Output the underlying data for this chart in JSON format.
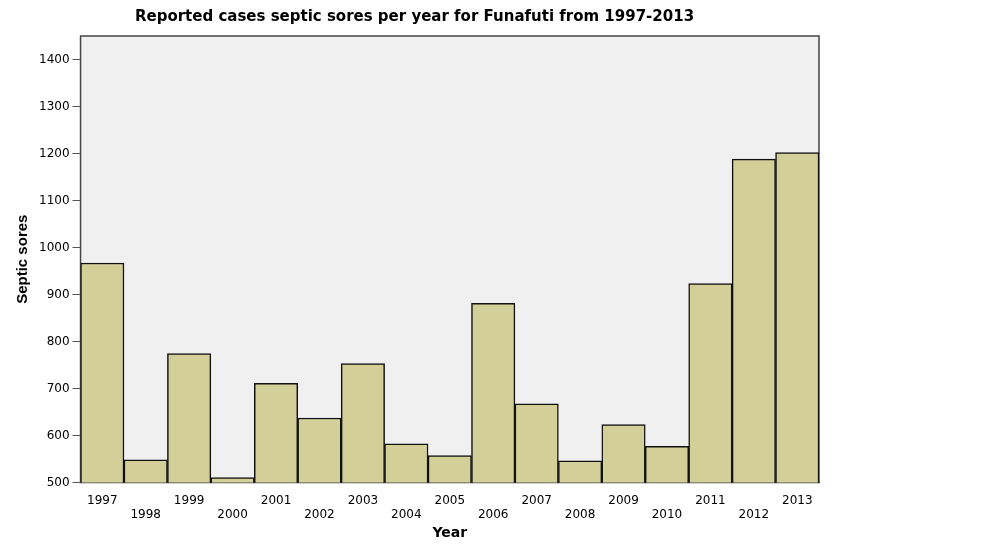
{
  "chart_data": {
    "type": "bar",
    "title": "Reported cases septic sores per year for Funafuti from 1997-2013",
    "xlabel": "Year",
    "ylabel": "Septic sores",
    "categories": [
      "1997",
      "1998",
      "1999",
      "2000",
      "2001",
      "2002",
      "2003",
      "2004",
      "2005",
      "2006",
      "2007",
      "2008",
      "2009",
      "2010",
      "2011",
      "2012",
      "2013"
    ],
    "values": [
      967,
      548,
      774,
      510,
      711,
      637,
      753,
      582,
      557,
      881,
      667,
      546,
      623,
      577,
      923,
      1188,
      1202
    ],
    "color": "#d3cf98",
    "ylim": [
      500,
      1450
    ],
    "yticks": [
      500,
      600,
      700,
      800,
      900,
      1000,
      1100,
      1200,
      1300,
      1400
    ],
    "grid": false,
    "legend": false
  }
}
